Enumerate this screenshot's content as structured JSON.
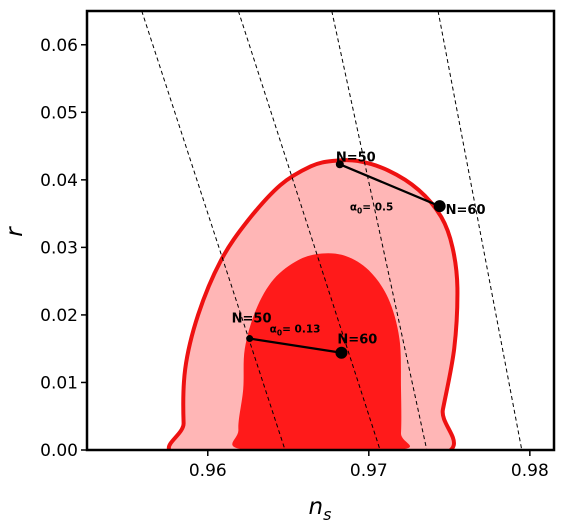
{
  "chart_data": {
    "type": "scatter",
    "title": "",
    "xlabel": "n",
    "xlabel_sub": "s",
    "ylabel": "r",
    "xlim": [
      0.9525,
      0.9815
    ],
    "ylim": [
      0.0,
      0.065
    ],
    "xticks": [
      0.96,
      0.97,
      0.98
    ],
    "xtick_labels": [
      "0.96",
      "0.97",
      "0.98"
    ],
    "yticks": [
      0.0,
      0.01,
      0.02,
      0.03,
      0.04,
      0.05,
      0.06
    ],
    "ytick_labels": [
      "0.00",
      "0.01",
      "0.02",
      "0.03",
      "0.04",
      "0.05",
      "0.06"
    ],
    "grid": false,
    "colors": {
      "contour_outer_fill": "#ffb6b6",
      "contour_outer_edge": "#ee1111",
      "contour_inner_fill": "#ff1a1a",
      "points": "#000000",
      "dashed_lines": "#000000"
    },
    "confidence_regions": [
      {
        "name": "outer",
        "boundary": [
          [
            0.9588,
            -0.001
          ],
          [
            0.9585,
            0.004
          ],
          [
            0.9586,
            0.012
          ],
          [
            0.9594,
            0.02
          ],
          [
            0.9608,
            0.028
          ],
          [
            0.9625,
            0.034
          ],
          [
            0.9645,
            0.0392
          ],
          [
            0.9664,
            0.042
          ],
          [
            0.9678,
            0.0428
          ],
          [
            0.9693,
            0.0428
          ],
          [
            0.9712,
            0.0414
          ],
          [
            0.9731,
            0.0385
          ],
          [
            0.9745,
            0.0345
          ],
          [
            0.9752,
            0.03
          ],
          [
            0.9755,
            0.024
          ],
          [
            0.9753,
            0.015
          ],
          [
            0.9746,
            0.006
          ],
          [
            0.974,
            -0.001
          ]
        ]
      },
      {
        "name": "inner",
        "boundary": [
          [
            0.9622,
            0.009
          ],
          [
            0.9619,
            0.003
          ],
          [
            0.9624,
            0.0
          ],
          [
            0.9718,
            0.0
          ],
          [
            0.972,
            0.0025
          ],
          [
            0.972,
            0.009
          ],
          [
            0.9719,
            0.0165
          ],
          [
            0.9712,
            0.0225
          ],
          [
            0.97,
            0.0266
          ],
          [
            0.9686,
            0.0287
          ],
          [
            0.9671,
            0.0291
          ],
          [
            0.9656,
            0.0281
          ],
          [
            0.9641,
            0.0253
          ],
          [
            0.963,
            0.0208
          ],
          [
            0.9623,
            0.015
          ]
        ]
      }
    ],
    "dashed_lines": [
      [
        [
          0.9559,
          0.065
        ],
        [
          0.9648,
          0.0
        ]
      ],
      [
        [
          0.9619,
          0.065
        ],
        [
          0.9707,
          0.0
        ]
      ],
      [
        [
          0.9677,
          0.065
        ],
        [
          0.9736,
          0.0
        ]
      ],
      [
        [
          0.9743,
          0.065
        ],
        [
          0.9795,
          0.0
        ]
      ]
    ],
    "series": [
      {
        "points": [
          {
            "x": 0.9626,
            "y": 0.0165,
            "label": "N=50"
          },
          {
            "x": 0.9683,
            "y": 0.0144,
            "label": "N=60"
          }
        ],
        "annotation": {
          "prefix": "α",
          "sub": "0",
          "text": "= 0.13"
        }
      },
      {
        "points": [
          {
            "x": 0.9682,
            "y": 0.0423,
            "label": "N=50"
          },
          {
            "x": 0.9744,
            "y": 0.0361,
            "label": "N=60"
          }
        ],
        "annotation": {
          "prefix": "α",
          "sub": "0",
          "text": "= 0.5"
        }
      }
    ]
  }
}
